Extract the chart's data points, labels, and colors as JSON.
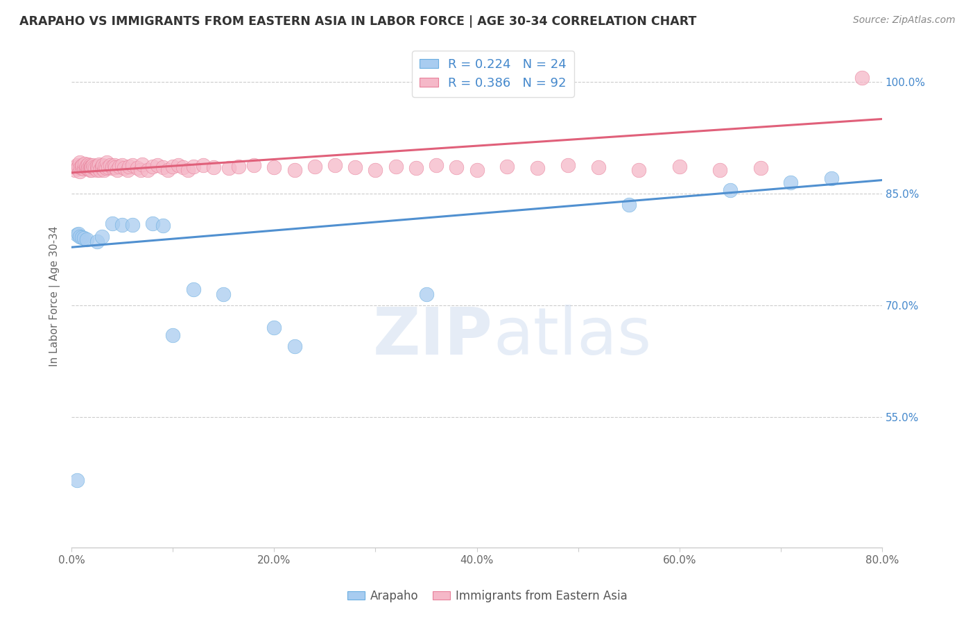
{
  "title": "ARAPAHO VS IMMIGRANTS FROM EASTERN ASIA IN LABOR FORCE | AGE 30-34 CORRELATION CHART",
  "source": "Source: ZipAtlas.com",
  "ylabel": "In Labor Force | Age 30-34",
  "legend_label1": "Arapaho",
  "legend_label2": "Immigrants from Eastern Asia",
  "r1": 0.224,
  "n1": 24,
  "r2": 0.386,
  "n2": 92,
  "xlim": [
    0.0,
    0.8
  ],
  "ylim": [
    0.375,
    1.05
  ],
  "color_blue_fill": "#a8ccf0",
  "color_blue_edge": "#6aaee0",
  "color_pink_fill": "#f5b8c8",
  "color_pink_edge": "#e8809a",
  "color_line_blue": "#5090d0",
  "color_line_pink": "#e0607a",
  "color_text_blue": "#4488cc",
  "color_grid": "#cccccc",
  "ytick_labels": [
    "55.0%",
    "70.0%",
    "85.0%",
    "100.0%"
  ],
  "ytick_values": [
    0.55,
    0.7,
    0.85,
    1.0
  ],
  "xtick_labels": [
    "0.0%",
    "",
    "20.0%",
    "",
    "40.0%",
    "",
    "60.0%",
    "",
    "80.0%"
  ],
  "xtick_values": [
    0.0,
    0.1,
    0.2,
    0.3,
    0.4,
    0.5,
    0.6,
    0.7,
    0.8
  ],
  "blue_x": [
    0.005,
    0.007,
    0.008,
    0.01,
    0.012,
    0.015,
    0.025,
    0.03,
    0.04,
    0.05,
    0.06,
    0.08,
    0.09,
    0.1,
    0.12,
    0.15,
    0.2,
    0.22,
    0.35,
    0.55,
    0.65,
    0.71,
    0.75,
    0.005
  ],
  "blue_y": [
    0.795,
    0.796,
    0.792,
    0.791,
    0.79,
    0.788,
    0.786,
    0.792,
    0.81,
    0.808,
    0.808,
    0.81,
    0.807,
    0.66,
    0.721,
    0.715,
    0.67,
    0.645,
    0.715,
    0.835,
    0.855,
    0.865,
    0.87,
    0.465
  ],
  "pink_x": [
    0.003,
    0.004,
    0.005,
    0.006,
    0.007,
    0.008,
    0.008,
    0.009,
    0.01,
    0.01,
    0.011,
    0.012,
    0.013,
    0.013,
    0.014,
    0.015,
    0.015,
    0.016,
    0.016,
    0.017,
    0.018,
    0.018,
    0.019,
    0.019,
    0.02,
    0.02,
    0.021,
    0.022,
    0.023,
    0.025,
    0.025,
    0.026,
    0.027,
    0.028,
    0.03,
    0.03,
    0.031,
    0.032,
    0.033,
    0.034,
    0.035,
    0.036,
    0.038,
    0.04,
    0.04,
    0.042,
    0.043,
    0.045,
    0.047,
    0.05,
    0.052,
    0.055,
    0.057,
    0.06,
    0.065,
    0.068,
    0.07,
    0.075,
    0.08,
    0.085,
    0.09,
    0.095,
    0.1,
    0.105,
    0.11,
    0.115,
    0.12,
    0.13,
    0.14,
    0.155,
    0.165,
    0.18,
    0.2,
    0.22,
    0.24,
    0.26,
    0.28,
    0.3,
    0.32,
    0.34,
    0.36,
    0.38,
    0.4,
    0.43,
    0.46,
    0.49,
    0.52,
    0.56,
    0.6,
    0.64,
    0.68,
    0.78
  ],
  "pink_y": [
    0.882,
    0.885,
    0.888,
    0.884,
    0.886,
    0.88,
    0.892,
    0.885,
    0.884,
    0.887,
    0.888,
    0.883,
    0.886,
    0.89,
    0.885,
    0.884,
    0.887,
    0.883,
    0.889,
    0.885,
    0.888,
    0.882,
    0.886,
    0.884,
    0.882,
    0.886,
    0.888,
    0.885,
    0.884,
    0.887,
    0.882,
    0.885,
    0.889,
    0.882,
    0.886,
    0.884,
    0.888,
    0.882,
    0.886,
    0.884,
    0.892,
    0.885,
    0.888,
    0.884,
    0.886,
    0.888,
    0.885,
    0.882,
    0.886,
    0.888,
    0.884,
    0.882,
    0.886,
    0.888,
    0.884,
    0.882,
    0.889,
    0.882,
    0.886,
    0.888,
    0.885,
    0.882,
    0.886,
    0.888,
    0.885,
    0.882,
    0.886,
    0.888,
    0.885,
    0.884,
    0.886,
    0.888,
    0.885,
    0.882,
    0.886,
    0.888,
    0.885,
    0.882,
    0.886,
    0.884,
    0.888,
    0.885,
    0.882,
    0.886,
    0.884,
    0.888,
    0.885,
    0.882,
    0.886,
    0.882,
    0.884,
    1.005
  ],
  "blue_trendline": [
    0.778,
    0.868
  ],
  "pink_trendline": [
    0.878,
    0.95
  ],
  "watermark_zip": "ZIP",
  "watermark_atlas": "atlas",
  "background_color": "#ffffff"
}
